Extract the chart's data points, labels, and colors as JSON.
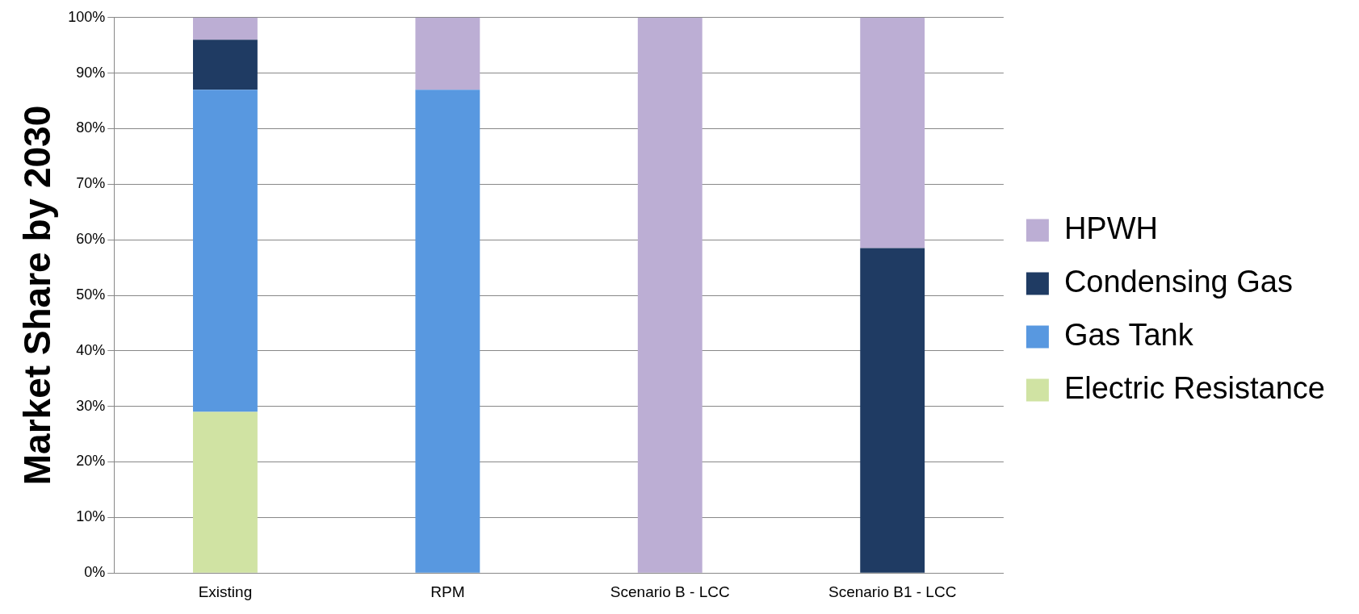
{
  "chart_data": {
    "type": "bar",
    "stacked": true,
    "ylabel": "Market Share by 2030",
    "categories": [
      "Existing",
      "RPM",
      "Scenario B - LCC",
      "Scenario B1 - LCC"
    ],
    "series": [
      {
        "name": "Electric Resistance",
        "color": "#d0e3a3",
        "values": [
          29,
          null,
          null,
          null
        ]
      },
      {
        "name": "Gas Tank",
        "color": "#5898e0",
        "values": [
          58,
          87,
          null,
          null
        ]
      },
      {
        "name": "Condensing Gas",
        "color": "#1f3b63",
        "values": [
          9,
          null,
          null,
          58.5
        ]
      },
      {
        "name": "HPWH",
        "color": "#bcaed4",
        "values": [
          4,
          13,
          100,
          41.5
        ]
      }
    ],
    "ylim": [
      0,
      100
    ],
    "yticks": [
      {
        "value": 0,
        "label": "0%"
      },
      {
        "value": 10,
        "label": "10%"
      },
      {
        "value": 20,
        "label": "20%"
      },
      {
        "value": 30,
        "label": "30%"
      },
      {
        "value": 40,
        "label": "40%"
      },
      {
        "value": 50,
        "label": "50%"
      },
      {
        "value": 60,
        "label": "60%"
      },
      {
        "value": 70,
        "label": "70%"
      },
      {
        "value": 80,
        "label": "80%"
      },
      {
        "value": 90,
        "label": "90%"
      },
      {
        "value": 100,
        "label": "100%"
      }
    ],
    "grid": "y",
    "legend": "right"
  }
}
